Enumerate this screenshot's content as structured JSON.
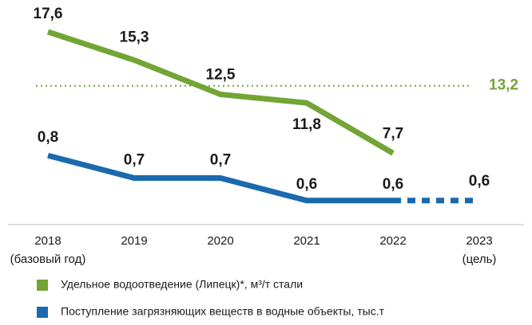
{
  "chart_data": {
    "type": "line",
    "categories": [
      "2018",
      "2019",
      "2020",
      "2021",
      "2022",
      "2023"
    ],
    "category_notes": [
      "(базовый год)",
      null,
      null,
      null,
      null,
      "(цель)"
    ],
    "series": [
      {
        "name": "Удельное водоотведение (Липецк)*, м³/т стали",
        "color": "#73a436",
        "values": [
          17.6,
          15.3,
          12.5,
          11.8,
          7.7,
          null
        ],
        "value_labels": [
          "17,6",
          "15,3",
          "12,5",
          "11,8",
          "7,7",
          null
        ]
      },
      {
        "name": "Поступление загрязняющих веществ в водные объекты, тыс.т",
        "color": "#1a6aad",
        "axis": "y2",
        "values": [
          0.8,
          0.7,
          0.7,
          0.6,
          0.6,
          0.6
        ],
        "value_labels": [
          "0,8",
          "0,7",
          "0,7",
          "0,6",
          "0,6",
          "0,6"
        ],
        "dashed_from_index": 4
      }
    ],
    "target": {
      "value": 13.2,
      "label": "13,2",
      "color": "#73a436"
    },
    "ylim": [
      2,
      18.9
    ],
    "y2lim": [
      0.5,
      1.42
    ]
  }
}
